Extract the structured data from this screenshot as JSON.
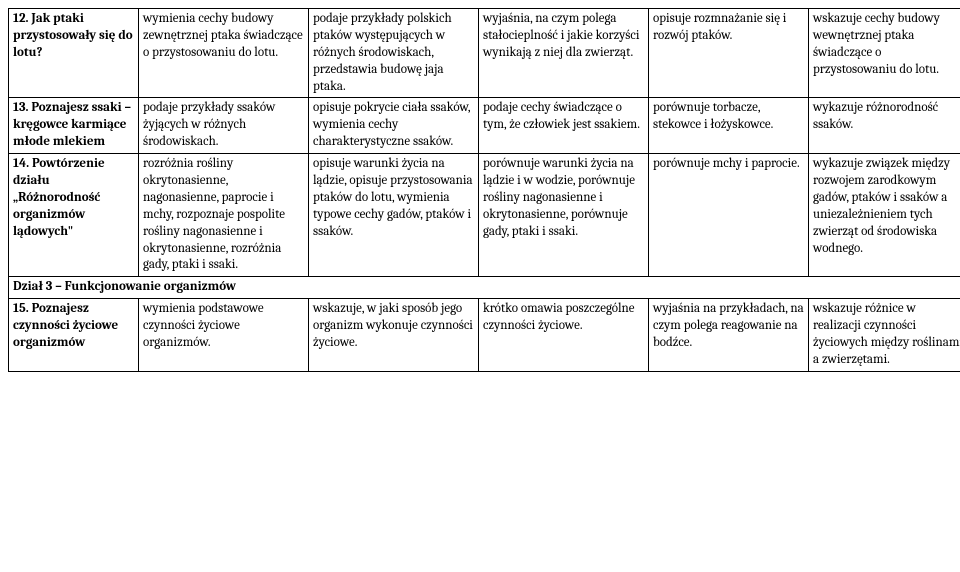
{
  "table": {
    "rows": [
      {
        "topic": "12. Jak ptaki przystosowały się do lotu?",
        "c1": "wymienia cechy budowy zewnętrznej ptaka świadczące o przystosowaniu do lotu.",
        "c2": "podaje przykłady polskich ptaków występujących w różnych środowiskach, przedstawia budowę jaja ptaka.",
        "c3": "wyjaśnia, na czym polega stałocieplność i jakie korzyści wynikają z niej dla zwierząt.",
        "c4": "opisuje rozmnażanie się i rozwój ptaków.",
        "c5": "wskazuje cechy budowy wewnętrznej ptaka świadczące o przystosowaniu do lotu."
      },
      {
        "topic": "13. Poznajesz ssaki – kręgowce karmiące młode mlekiem",
        "c1": "podaje przykłady ssaków żyjących w różnych środowiskach.",
        "c2": "opisuje pokrycie ciała ssaków, wymienia cechy charakterystyczne ssaków.",
        "c3": "podaje cechy świadczące o tym, że człowiek jest ssakiem.",
        "c4": "porównuje torbacze, stekowce i łożyskowce.",
        "c5": "wykazuje różnorodność ssaków."
      },
      {
        "topic": "14. Powtórzenie działu „Różnorodność organizmów lądowych\"",
        "c1": "rozróżnia rośliny okrytonasienne, nagonasienne, paprocie i mchy, rozpoznaje pospolite rośliny nagonasienne i okrytonasienne, rozróżnia gady, ptaki i ssaki.",
        "c2": "opisuje warunki życia na lądzie, opisuje przystosowania ptaków do lotu, wymienia typowe cechy gadów, ptaków i ssaków.",
        "c3": "porównuje warunki życia na lądzie i w wodzie, porównuje rośliny nagonasienne i okrytonasienne, porównuje gady, ptaki i ssaki.",
        "c4": "porównuje mchy i paprocie.",
        "c5": "wykazuje związek między rozwojem zarodkowym gadów, ptaków i ssaków a uniezależnieniem tych zwierząt od środowiska wodnego."
      }
    ],
    "section_title": "Dział 3 – Funkcjonowanie organizmów",
    "row15": {
      "topic": "15. Poznajesz czynności życiowe organizmów",
      "c1": "wymienia podstawowe czynności życiowe organizmów.",
      "c2": "wskazuje, w jaki sposób jego organizm wykonuje czynności życiowe.",
      "c3": "krótko omawia poszczególne czynności życiowe.",
      "c4": "wyjaśnia na przykładach, na czym polega reagowanie na bodźce.",
      "c5": "wskazuje różnice w realizacji czynności życiowych między roślinami a zwierzętami."
    }
  }
}
